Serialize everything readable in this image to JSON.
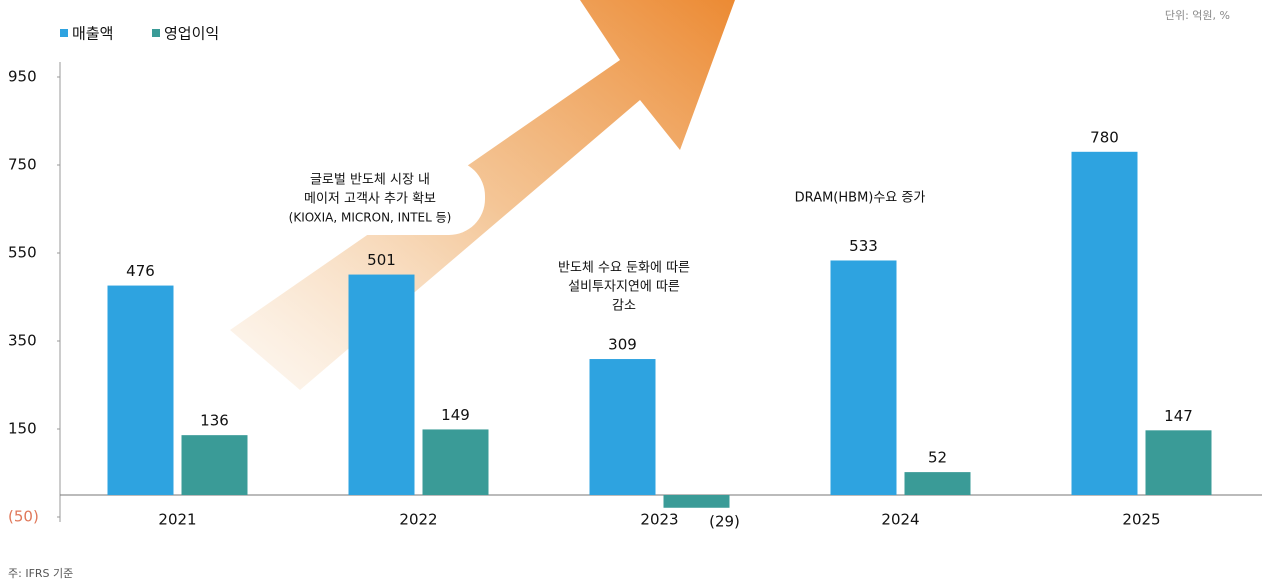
{
  "chart_data": {
    "type": "bar",
    "unit": "단위: 억원, %",
    "note": "주: IFRS 기준",
    "categories": [
      "2021",
      "2022",
      "2023",
      "2024",
      "2025"
    ],
    "series": [
      {
        "name": "매출액",
        "color": "#2ea3e0",
        "values": [
          476,
          501,
          309,
          533,
          780
        ]
      },
      {
        "name": "영업이익",
        "color": "#3a9b97",
        "values": [
          136,
          149,
          -29,
          52,
          147
        ],
        "value_labels": [
          "136",
          "149",
          "(29)",
          "52",
          "147"
        ]
      }
    ],
    "ylim": [
      -50,
      950
    ],
    "yticks": [
      {
        "value": -50,
        "label": "(50)"
      },
      150,
      350,
      550,
      750,
      950
    ],
    "annotations": [
      [
        "글로벌 반도체 시장 내",
        "메이저 고객사 추가 확보",
        "(KIOXIA, MICRON, INTEL 등)"
      ],
      [
        "반도체 수요 둔화에 따른",
        "설비투자지연에 따른",
        "감소"
      ],
      [
        "DRAM(HBM)수요 증가"
      ]
    ]
  }
}
